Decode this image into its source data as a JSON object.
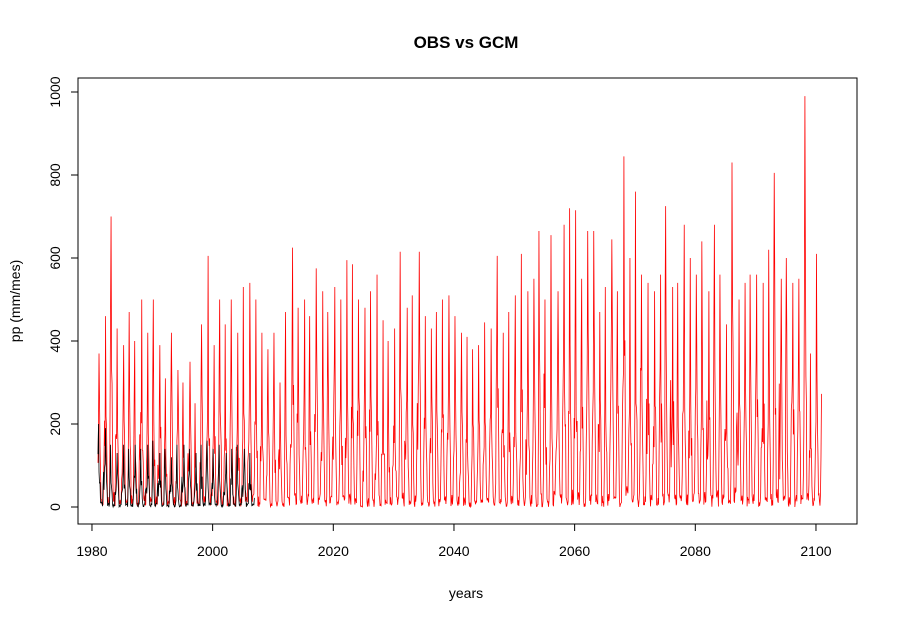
{
  "chart_data": {
    "type": "line",
    "title": "OBS vs GCM",
    "xlabel": "years",
    "ylabel": "pp (mm/mes)",
    "xlim": [
      1981,
      2101
    ],
    "ylim": [
      0,
      1000
    ],
    "x_ticks": [
      1980,
      2000,
      2020,
      2040,
      2060,
      2080,
      2100
    ],
    "y_ticks": [
      0,
      200,
      400,
      600,
      800,
      1000
    ],
    "grid": false,
    "legend": "none",
    "series": [
      {
        "color": "#ff0000",
        "x_range": [
          1981,
          2100.917
        ],
        "step": "monthly",
        "peaks": [
          [
            1981,
            370
          ],
          [
            1982,
            460
          ],
          [
            1983,
            700
          ],
          [
            1984,
            430
          ],
          [
            1985,
            390
          ],
          [
            1986,
            470
          ],
          [
            1987,
            400
          ],
          [
            1988,
            500
          ],
          [
            1989,
            420
          ],
          [
            1990,
            500
          ],
          [
            1991,
            390
          ],
          [
            1992,
            310
          ],
          [
            1993,
            420
          ],
          [
            1994,
            330
          ],
          [
            1995,
            300
          ],
          [
            1996,
            350
          ],
          [
            1997,
            250
          ],
          [
            1998,
            440
          ],
          [
            1999,
            605
          ],
          [
            2000,
            390
          ],
          [
            2001,
            500
          ],
          [
            2002,
            440
          ],
          [
            2003,
            500
          ],
          [
            2004,
            420
          ],
          [
            2005,
            530
          ],
          [
            2006,
            540
          ],
          [
            2007,
            500
          ],
          [
            2008,
            420
          ],
          [
            2009,
            380
          ],
          [
            2010,
            420
          ],
          [
            2011,
            300
          ],
          [
            2012,
            470
          ],
          [
            2013,
            625
          ],
          [
            2014,
            480
          ],
          [
            2015,
            500
          ],
          [
            2016,
            460
          ],
          [
            2017,
            575
          ],
          [
            2018,
            520
          ],
          [
            2019,
            470
          ],
          [
            2020,
            530
          ],
          [
            2021,
            500
          ],
          [
            2022,
            595
          ],
          [
            2023,
            585
          ],
          [
            2024,
            500
          ],
          [
            2025,
            480
          ],
          [
            2026,
            520
          ],
          [
            2027,
            560
          ],
          [
            2028,
            450
          ],
          [
            2029,
            400
          ],
          [
            2030,
            430
          ],
          [
            2031,
            615
          ],
          [
            2032,
            480
          ],
          [
            2033,
            510
          ],
          [
            2034,
            615
          ],
          [
            2035,
            460
          ],
          [
            2036,
            430
          ],
          [
            2037,
            470
          ],
          [
            2038,
            500
          ],
          [
            2039,
            510
          ],
          [
            2040,
            460
          ],
          [
            2041,
            420
          ],
          [
            2042,
            410
          ],
          [
            2043,
            380
          ],
          [
            2044,
            390
          ],
          [
            2045,
            445
          ],
          [
            2046,
            430
          ],
          [
            2047,
            605
          ],
          [
            2048,
            420
          ],
          [
            2049,
            470
          ],
          [
            2050,
            510
          ],
          [
            2051,
            610
          ],
          [
            2052,
            520
          ],
          [
            2053,
            550
          ],
          [
            2054,
            665
          ],
          [
            2055,
            500
          ],
          [
            2056,
            655
          ],
          [
            2057,
            520
          ],
          [
            2058,
            680
          ],
          [
            2059,
            720
          ],
          [
            2060,
            715
          ],
          [
            2061,
            550
          ],
          [
            2062,
            665
          ],
          [
            2063,
            665
          ],
          [
            2064,
            470
          ],
          [
            2065,
            530
          ],
          [
            2066,
            645
          ],
          [
            2067,
            520
          ],
          [
            2068,
            845
          ],
          [
            2069,
            600
          ],
          [
            2070,
            760
          ],
          [
            2071,
            560
          ],
          [
            2072,
            540
          ],
          [
            2073,
            520
          ],
          [
            2074,
            560
          ],
          [
            2075,
            725
          ],
          [
            2076,
            530
          ],
          [
            2077,
            540
          ],
          [
            2078,
            680
          ],
          [
            2079,
            600
          ],
          [
            2080,
            560
          ],
          [
            2081,
            640
          ],
          [
            2082,
            520
          ],
          [
            2083,
            680
          ],
          [
            2084,
            560
          ],
          [
            2085,
            440
          ],
          [
            2086,
            830
          ],
          [
            2087,
            500
          ],
          [
            2088,
            540
          ],
          [
            2089,
            560
          ],
          [
            2090,
            560
          ],
          [
            2091,
            540
          ],
          [
            2092,
            620
          ],
          [
            2093,
            805
          ],
          [
            2094,
            550
          ],
          [
            2095,
            600
          ],
          [
            2096,
            540
          ],
          [
            2097,
            550
          ],
          [
            2098,
            990
          ],
          [
            2099,
            370
          ],
          [
            2100,
            610
          ]
        ]
      },
      {
        "color": "#000000",
        "x_range": [
          1981,
          2006.917
        ],
        "step": "monthly",
        "peaks": [
          [
            1981,
            200
          ],
          [
            1982,
            190
          ],
          [
            1983,
            150
          ],
          [
            1984,
            130
          ],
          [
            1985,
            150
          ],
          [
            1986,
            140
          ],
          [
            1987,
            150
          ],
          [
            1988,
            140
          ],
          [
            1989,
            150
          ],
          [
            1990,
            160
          ],
          [
            1991,
            130
          ],
          [
            1992,
            140
          ],
          [
            1993,
            120
          ],
          [
            1994,
            150
          ],
          [
            1995,
            150
          ],
          [
            1996,
            140
          ],
          [
            1997,
            130
          ],
          [
            1998,
            150
          ],
          [
            1999,
            160
          ],
          [
            2000,
            140
          ],
          [
            2001,
            150
          ],
          [
            2002,
            130
          ],
          [
            2003,
            140
          ],
          [
            2004,
            150
          ],
          [
            2005,
            140
          ],
          [
            2006,
            130
          ]
        ]
      }
    ]
  }
}
